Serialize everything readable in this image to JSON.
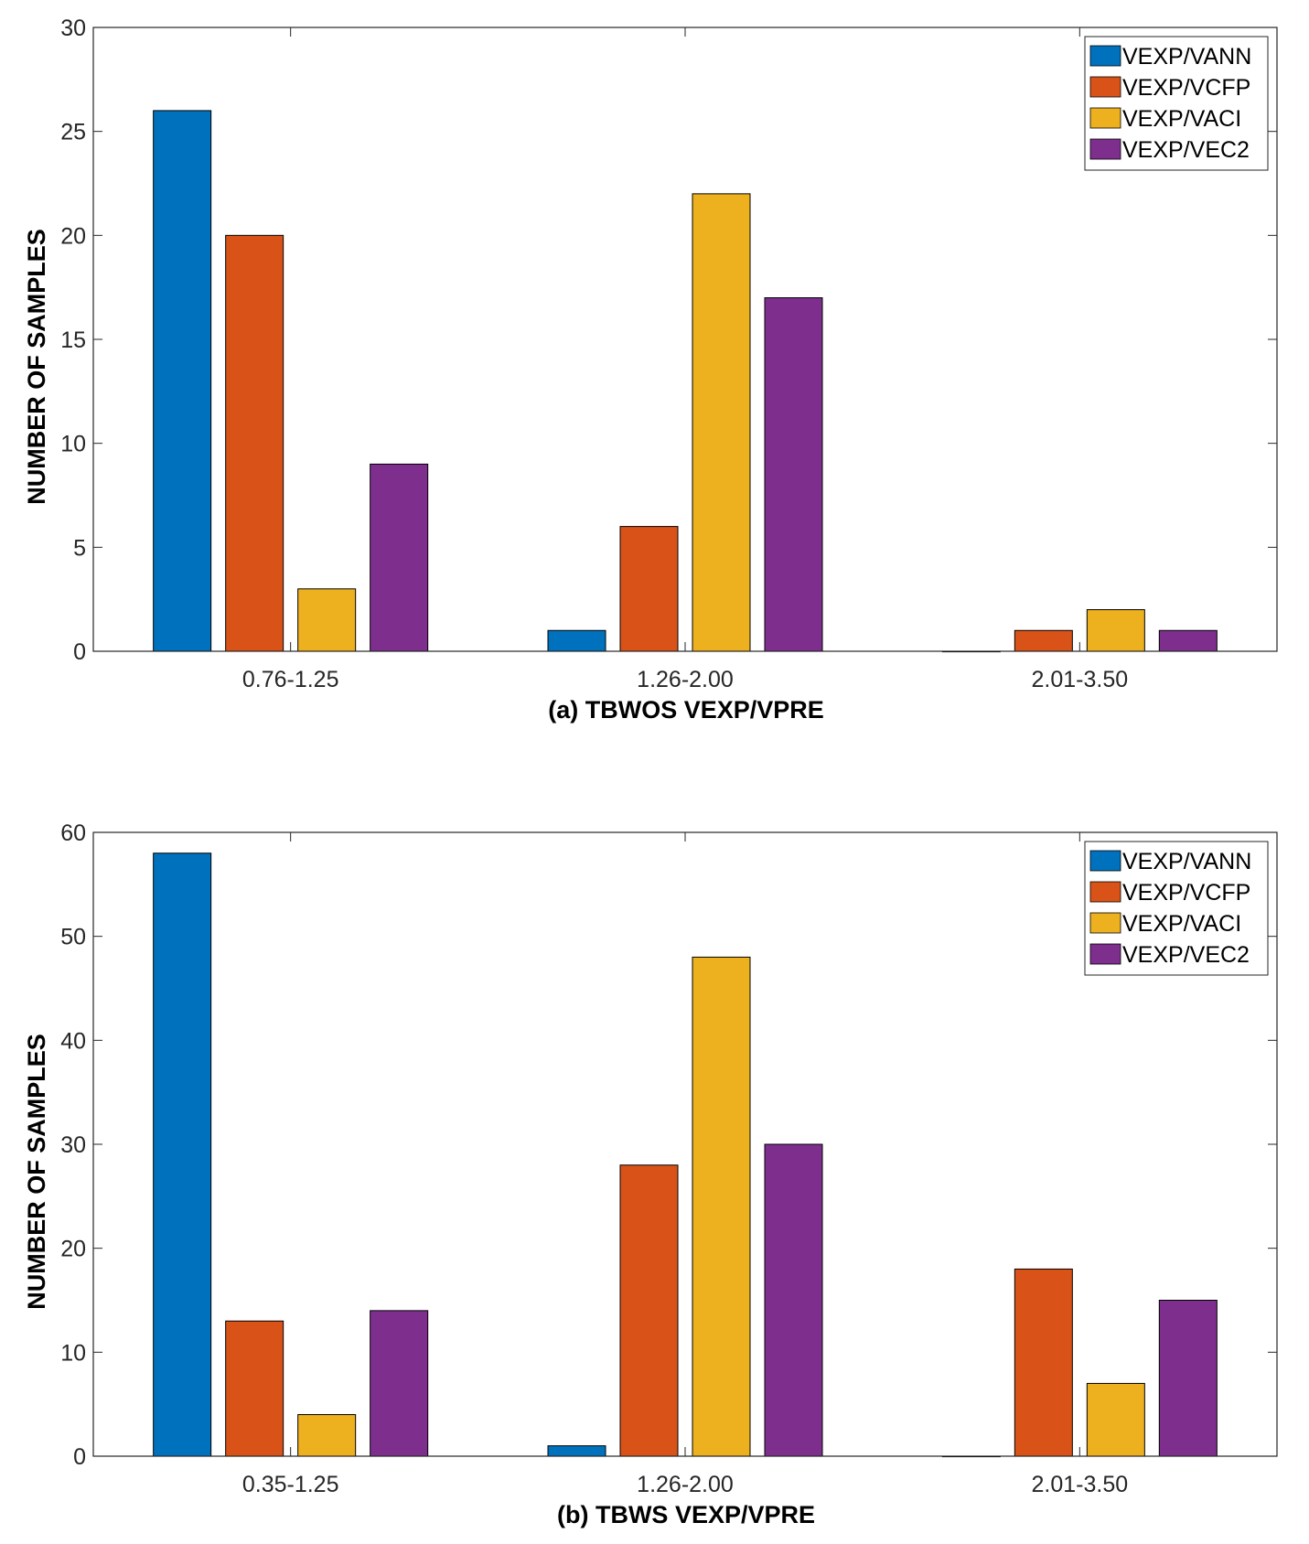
{
  "chart_data": [
    {
      "type": "bar",
      "title": "",
      "xlabel": "(a) TBWOS VEXP/VPRE",
      "ylabel": "NUMBER OF SAMPLES",
      "ylim": [
        0,
        30
      ],
      "yticks": [
        0,
        5,
        10,
        15,
        20,
        25,
        30
      ],
      "categories": [
        "0.76-1.25",
        "1.26-2.00",
        "2.01-3.50"
      ],
      "legend_position": "top-right",
      "series": [
        {
          "name": "VEXP/VANN",
          "color": "#0072BD",
          "values": [
            26,
            1,
            0
          ]
        },
        {
          "name": "VEXP/VCFP",
          "color": "#D95319",
          "values": [
            20,
            6,
            1
          ]
        },
        {
          "name": "VEXP/VACI",
          "color": "#EDB120",
          "values": [
            3,
            22,
            2
          ]
        },
        {
          "name": "VEXP/VEC2",
          "color": "#7E2F8E",
          "values": [
            9,
            17,
            1
          ]
        }
      ]
    },
    {
      "type": "bar",
      "title": "",
      "xlabel": "(b) TBWS VEXP/VPRE",
      "ylabel": "NUMBER OF SAMPLES",
      "ylim": [
        0,
        60
      ],
      "yticks": [
        0,
        10,
        20,
        30,
        40,
        50,
        60
      ],
      "categories": [
        "0.35-1.25",
        "1.26-2.00",
        "2.01-3.50"
      ],
      "legend_position": "top-right",
      "series": [
        {
          "name": "VEXP/VANN",
          "color": "#0072BD",
          "values": [
            58,
            1,
            0
          ]
        },
        {
          "name": "VEXP/VCFP",
          "color": "#D95319",
          "values": [
            13,
            28,
            18
          ]
        },
        {
          "name": "VEXP/VACI",
          "color": "#EDB120",
          "values": [
            4,
            48,
            7
          ]
        },
        {
          "name": "VEXP/VEC2",
          "color": "#7E2F8E",
          "values": [
            14,
            30,
            15
          ]
        }
      ]
    }
  ]
}
